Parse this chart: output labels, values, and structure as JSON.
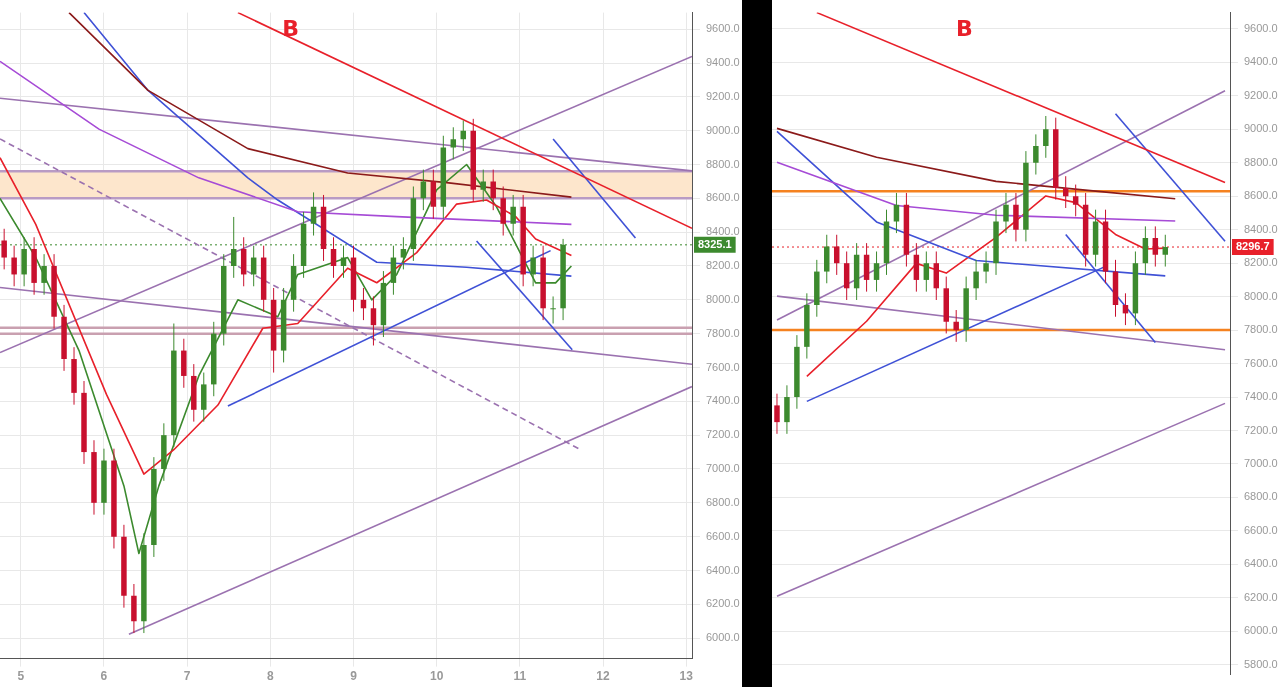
{
  "chart_data": [
    {
      "type": "candlestick",
      "annotations": [
        "B"
      ],
      "grid": true,
      "legend": false,
      "x": [
        4.8,
        4.92,
        5.04,
        5.16,
        5.28,
        5.4,
        5.52,
        5.64,
        5.76,
        5.88,
        6,
        6.12,
        6.24,
        6.36,
        6.48,
        6.6,
        6.72,
        6.84,
        6.96,
        7.08,
        7.2,
        7.32,
        7.44,
        7.56,
        7.68,
        7.8,
        7.92,
        8.04,
        8.16,
        8.28,
        8.4,
        8.52,
        8.64,
        8.76,
        8.88,
        9,
        9.12,
        9.24,
        9.36,
        9.48,
        9.6,
        9.72,
        9.84,
        9.96,
        10.08,
        10.2,
        10.32,
        10.44,
        10.56,
        10.68,
        10.8,
        10.92,
        11.04,
        11.16,
        11.28,
        11.4,
        11.52
      ],
      "ohlc": [
        [
          8350,
          8420,
          8180,
          8250
        ],
        [
          8250,
          8320,
          8080,
          8150
        ],
        [
          8150,
          8370,
          8080,
          8300
        ],
        [
          8300,
          8370,
          8030,
          8100
        ],
        [
          8100,
          8270,
          8030,
          8200
        ],
        [
          8200,
          8270,
          7830,
          7900
        ],
        [
          7900,
          7970,
          7580,
          7650
        ],
        [
          7650,
          7720,
          7380,
          7450
        ],
        [
          7450,
          7520,
          7030,
          7100
        ],
        [
          7100,
          7170,
          6730,
          6800
        ],
        [
          6800,
          7120,
          6730,
          7050
        ],
        [
          7050,
          7120,
          6530,
          6600
        ],
        [
          6600,
          6670,
          6180,
          6250
        ],
        [
          6250,
          6320,
          6030,
          6100
        ],
        [
          6100,
          6620,
          6030,
          6550
        ],
        [
          6550,
          7070,
          6480,
          7000
        ],
        [
          7000,
          7270,
          6930,
          7200
        ],
        [
          7200,
          7860,
          7130,
          7700
        ],
        [
          7700,
          7770,
          7480,
          7550
        ],
        [
          7550,
          7620,
          7280,
          7350
        ],
        [
          7350,
          7570,
          7280,
          7500
        ],
        [
          7500,
          7870,
          7430,
          7800
        ],
        [
          7800,
          8270,
          7730,
          8200
        ],
        [
          8200,
          8490,
          8130,
          8300
        ],
        [
          8300,
          8370,
          8080,
          8150
        ],
        [
          8150,
          8320,
          8080,
          8250
        ],
        [
          8250,
          8320,
          7930,
          8000
        ],
        [
          8000,
          8070,
          7570,
          7700
        ],
        [
          7700,
          8070,
          7630,
          8000
        ],
        [
          8000,
          8270,
          7930,
          8200
        ],
        [
          8200,
          8520,
          8130,
          8450
        ],
        [
          8450,
          8635,
          8380,
          8550
        ],
        [
          8550,
          8620,
          8230,
          8300
        ],
        [
          8300,
          8370,
          8130,
          8200
        ],
        [
          8200,
          8320,
          8130,
          8250
        ],
        [
          8250,
          8320,
          7930,
          8000
        ],
        [
          8000,
          8070,
          7880,
          7950
        ],
        [
          7950,
          8020,
          7730,
          7850
        ],
        [
          7850,
          8170,
          7780,
          8100
        ],
        [
          8100,
          8320,
          8030,
          8250
        ],
        [
          8250,
          8370,
          8180,
          8300
        ],
        [
          8300,
          8670,
          8230,
          8600
        ],
        [
          8600,
          8770,
          8530,
          8700
        ],
        [
          8700,
          8770,
          8480,
          8550
        ],
        [
          8550,
          8970,
          8480,
          8900
        ],
        [
          8900,
          9020,
          8830,
          8950
        ],
        [
          8950,
          9060,
          8880,
          9000
        ],
        [
          9000,
          9070,
          8580,
          8650
        ],
        [
          8650,
          8770,
          8580,
          8700
        ],
        [
          8700,
          8770,
          8530,
          8600
        ],
        [
          8600,
          8670,
          8380,
          8450
        ],
        [
          8450,
          8620,
          8380,
          8550
        ],
        [
          8550,
          8620,
          8080,
          8150
        ],
        [
          8150,
          8320,
          8080,
          8250
        ],
        [
          8250,
          8320,
          7880,
          7950
        ],
        [
          7950,
          8020,
          7860,
          7950
        ],
        [
          7950,
          8360,
          7880,
          8325.1
        ]
      ],
      "series": [
        {
          "type": "line",
          "color": "#8b1a1a",
          "x": [
            5.58,
            6.53,
            7.73,
            8.93,
            10.12,
            11.62
          ],
          "values": [
            9698,
            9238,
            8894,
            8750,
            8693,
            8607
          ]
        },
        {
          "type": "line",
          "color": "#a64bd6",
          "x": [
            4.75,
            5.94,
            7.14,
            8.33,
            9.52,
            11.62
          ],
          "values": [
            9410,
            9009,
            8721,
            8521,
            8492,
            8446
          ]
        },
        {
          "type": "line",
          "color": "#3f51d6",
          "x": [
            5.76,
            6.53,
            7.73,
            8.09,
            9.28,
            10.36,
            11.62
          ],
          "values": [
            9698,
            9238,
            8721,
            8590,
            8222,
            8193,
            8140
          ]
        },
        {
          "type": "line",
          "color": "#e8202a",
          "x": [
            4.75,
            5.18,
            6.03,
            6.48,
            6.84,
            7.37,
            7.91,
            8.33,
            8.93,
            9.28,
            9.76,
            10.24,
            10.6,
            10.95,
            11.19,
            11.62
          ],
          "values": [
            8840,
            8446,
            7441,
            6970,
            7114,
            7378,
            7832,
            7860,
            8187,
            8101,
            8279,
            8566,
            8590,
            8492,
            8360,
            8262
          ]
        },
        {
          "type": "line",
          "color": "#3c8a2e",
          "x": [
            4.75,
            5.18,
            5.7,
            6.24,
            6.42,
            6.66,
            7.14,
            7.61,
            8.09,
            8.33,
            8.93,
            9.22,
            9.52,
            10,
            10.36,
            10.72,
            11.19,
            11.43,
            11.62
          ],
          "values": [
            8600,
            8250,
            7700,
            6900,
            6500,
            6900,
            7550,
            8000,
            7900,
            8150,
            8250,
            8000,
            8150,
            8650,
            8800,
            8550,
            8100,
            8100,
            8200
          ]
        },
        {
          "type": "line",
          "color": "#e8202a",
          "x": [
            7.61,
            13.07
          ],
          "values": [
            9698,
            8423
          ]
        },
        {
          "type": "line",
          "color": "#3f51d6",
          "x": [
            11.4,
            12.39
          ],
          "values": [
            8951,
            8365
          ]
        },
        {
          "type": "line",
          "color": "#3f51d6",
          "x": [
            10.48,
            11.63
          ],
          "values": [
            8348,
            7705
          ]
        },
        {
          "type": "line",
          "color": "#3f51d6",
          "x": [
            7.49,
            11.37
          ],
          "values": [
            7372,
            8291
          ]
        },
        {
          "type": "line",
          "color": "#9b72b0",
          "x": [
            4.75,
            13.07
          ],
          "values": [
            9192,
            8762
          ]
        },
        {
          "type": "line",
          "color": "#9b72b0",
          "x": [
            4.75,
            13.07
          ],
          "values": [
            7688,
            9439
          ]
        },
        {
          "type": "line",
          "color": "#9b72b0",
          "x": [
            4.75,
            13.07
          ],
          "values": [
            8073,
            7619
          ]
        },
        {
          "type": "line",
          "color": "#9b72b0",
          "x": [
            6.3,
            13.07
          ],
          "values": [
            6023,
            7487
          ]
        },
        {
          "type": "line",
          "color": "#9b72b0",
          "line_style": "dashed",
          "x": [
            4.75,
            11.73
          ],
          "values": [
            8951,
            7114
          ]
        }
      ],
      "bands": [
        {
          "axis": "y",
          "from": 8600,
          "to": 8760,
          "color": "#fde6cc"
        }
      ],
      "ref_lines": [
        {
          "axis": "y",
          "value": 8600,
          "color": "#b99bc4"
        },
        {
          "axis": "y",
          "value": 8760,
          "color": "#b99bc4"
        },
        {
          "axis": "y",
          "value": 7800,
          "color": "#c9a0b0"
        },
        {
          "axis": "y",
          "value": 7835,
          "color": "#c9a0b0"
        },
        {
          "axis": "y",
          "value": 8325.1,
          "label": "8325.1",
          "color": "#3c8a2e",
          "line_style": "dotted"
        }
      ],
      "xlim": [
        4.75,
        13.07
      ],
      "xticks": [
        5,
        6,
        7,
        8,
        9,
        10,
        11,
        12,
        13
      ],
      "ylim": [
        5879,
        9698
      ],
      "yticks": [
        {
          "value": 6000,
          "label": "6000.0"
        },
        {
          "value": 6200,
          "label": "6200.0"
        },
        {
          "value": 6400,
          "label": "6400.0"
        },
        {
          "value": 6600,
          "label": "6600.0"
        },
        {
          "value": 6800,
          "label": "6800.0"
        },
        {
          "value": 7000,
          "label": "7000.0"
        },
        {
          "value": 7200,
          "label": "7200.0"
        },
        {
          "value": 7400,
          "label": "7400.0"
        },
        {
          "value": 7600,
          "label": "7600.0"
        },
        {
          "value": 7800,
          "label": "7800.0"
        },
        {
          "value": 8000,
          "label": "8000.0"
        },
        {
          "value": 8200,
          "label": "8200.0"
        },
        {
          "value": 8400,
          "label": "8400.0"
        },
        {
          "value": 8600,
          "label": "8600.0"
        },
        {
          "value": 8800,
          "label": "8800.0"
        },
        {
          "value": 9000,
          "label": "9000.0"
        },
        {
          "value": 9200,
          "label": "9200.0"
        },
        {
          "value": 9400,
          "label": "9400.0"
        },
        {
          "value": 9600,
          "label": "9600.0"
        }
      ]
    },
    {
      "type": "candlestick",
      "annotations": [
        "B"
      ],
      "grid": "y",
      "legend": false,
      "tick_labels": "y",
      "categories": [
        null,
        null,
        null,
        null,
        null,
        null,
        null,
        null,
        null,
        null,
        null,
        null,
        null,
        null,
        null,
        null,
        null,
        null,
        null,
        null,
        null,
        null,
        null,
        null,
        null,
        null,
        null,
        null,
        null,
        null,
        null,
        null,
        null,
        null,
        null,
        null,
        null,
        null,
        null,
        null,
        null,
        null,
        null,
        null,
        null,
        null
      ],
      "ohlc": [
        [
          7350,
          7420,
          7180,
          7250
        ],
        [
          7250,
          7470,
          7180,
          7400
        ],
        [
          7400,
          7770,
          7330,
          7700
        ],
        [
          7700,
          8020,
          7630,
          7950
        ],
        [
          7950,
          8220,
          7880,
          8150
        ],
        [
          8150,
          8370,
          8080,
          8300
        ],
        [
          8300,
          8370,
          8130,
          8200
        ],
        [
          8200,
          8270,
          7980,
          8050
        ],
        [
          8050,
          8320,
          7980,
          8250
        ],
        [
          8250,
          8320,
          8030,
          8100
        ],
        [
          8100,
          8270,
          8030,
          8200
        ],
        [
          8200,
          8520,
          8130,
          8450
        ],
        [
          8450,
          8620,
          8380,
          8550
        ],
        [
          8550,
          8620,
          8180,
          8250
        ],
        [
          8250,
          8320,
          8030,
          8100
        ],
        [
          8100,
          8270,
          8030,
          8200
        ],
        [
          8200,
          8270,
          7980,
          8050
        ],
        [
          8050,
          8120,
          7780,
          7850
        ],
        [
          7850,
          7920,
          7730,
          7800
        ],
        [
          7800,
          8120,
          7730,
          8050
        ],
        [
          8050,
          8220,
          7980,
          8150
        ],
        [
          8150,
          8270,
          8080,
          8200
        ],
        [
          8200,
          8520,
          8130,
          8450
        ],
        [
          8450,
          8620,
          8380,
          8550
        ],
        [
          8550,
          8620,
          8330,
          8400
        ],
        [
          8400,
          8870,
          8330,
          8800
        ],
        [
          8800,
          8970,
          8730,
          8900
        ],
        [
          8900,
          9080,
          8830,
          9000
        ],
        [
          9000,
          9070,
          8580,
          8650
        ],
        [
          8650,
          8720,
          8530,
          8600
        ],
        [
          8600,
          8670,
          8480,
          8550
        ],
        [
          8550,
          8620,
          8180,
          8250
        ],
        [
          8250,
          8520,
          8180,
          8450
        ],
        [
          8450,
          8520,
          8080,
          8150
        ],
        [
          8150,
          8220,
          7880,
          7950
        ],
        [
          7950,
          8020,
          7830,
          7900
        ],
        [
          7900,
          8270,
          7830,
          8200
        ],
        [
          8200,
          8420,
          8130,
          8350
        ],
        [
          8350,
          8420,
          8180,
          8250
        ],
        [
          8250,
          8370,
          8180,
          8296.7
        ],
        null,
        null,
        null,
        null,
        null,
        null
      ],
      "series": [
        {
          "type": "line",
          "color": "#8b1a1a",
          "values": [
            9006,
            null,
            null,
            null,
            null,
            null,
            null,
            null,
            null,
            null,
            8833,
            null,
            null,
            null,
            null,
            null,
            null,
            null,
            null,
            null,
            null,
            null,
            8689,
            null,
            null,
            null,
            null,
            null,
            null,
            null,
            null,
            null,
            8631,
            null,
            null,
            null,
            null,
            null,
            null,
            null,
            8585,
            null,
            null,
            null,
            null,
            null
          ]
        },
        {
          "type": "line",
          "color": "#a64bd6",
          "values": [
            8804,
            null,
            null,
            null,
            null,
            null,
            null,
            null,
            null,
            null,
            null,
            null,
            8545,
            null,
            null,
            null,
            null,
            null,
            null,
            null,
            null,
            null,
            8487,
            null,
            null,
            null,
            null,
            null,
            null,
            null,
            null,
            null,
            null,
            null,
            null,
            null,
            null,
            null,
            null,
            null,
            8452,
            null,
            null,
            null,
            null,
            null
          ]
        },
        {
          "type": "line",
          "color": "#3f51d6",
          "values": [
            8988,
            null,
            null,
            null,
            null,
            null,
            null,
            null,
            null,
            null,
            8447,
            null,
            null,
            null,
            null,
            null,
            null,
            null,
            null,
            null,
            8216,
            null,
            null,
            null,
            null,
            null,
            null,
            null,
            null,
            null,
            null,
            null,
            null,
            null,
            null,
            null,
            null,
            null,
            null,
            8124,
            null,
            null,
            null,
            null,
            null,
            null
          ]
        },
        {
          "type": "line",
          "color": "#e8202a",
          "values": [
            null,
            null,
            null,
            7524,
            null,
            null,
            null,
            null,
            null,
            7853,
            null,
            null,
            null,
            null,
            8199,
            null,
            null,
            8141,
            null,
            null,
            null,
            null,
            8354,
            null,
            null,
            null,
            null,
            8602,
            null,
            null,
            8562,
            null,
            null,
            null,
            8372,
            null,
            null,
            8285,
            null,
            8290,
            null,
            null,
            null,
            null,
            null,
            null
          ]
        },
        {
          "type": "line",
          "color": "#e8202a",
          "values": [
            null,
            null,
            null,
            null,
            9698,
            null,
            null,
            null,
            null,
            null,
            null,
            null,
            null,
            null,
            null,
            null,
            null,
            null,
            null,
            null,
            null,
            null,
            null,
            null,
            null,
            null,
            null,
            null,
            null,
            null,
            null,
            null,
            null,
            null,
            null,
            null,
            null,
            null,
            null,
            null,
            null,
            null,
            null,
            null,
            null,
            8683
          ]
        },
        {
          "type": "line",
          "color": "#3f51d6",
          "values": [
            null,
            null,
            null,
            null,
            null,
            null,
            null,
            null,
            null,
            null,
            null,
            null,
            null,
            null,
            null,
            null,
            null,
            null,
            null,
            null,
            null,
            null,
            null,
            null,
            null,
            null,
            null,
            null,
            null,
            null,
            null,
            null,
            null,
            null,
            9093,
            null,
            null,
            null,
            null,
            null,
            null,
            null,
            null,
            null,
            null,
            8331
          ]
        },
        {
          "type": "line",
          "color": "#3f51d6",
          "values": [
            null,
            null,
            null,
            null,
            null,
            null,
            null,
            null,
            null,
            null,
            null,
            null,
            null,
            null,
            null,
            null,
            null,
            null,
            null,
            null,
            null,
            null,
            null,
            null,
            null,
            null,
            null,
            null,
            null,
            8372,
            null,
            null,
            null,
            null,
            null,
            null,
            null,
            null,
            7726,
            null,
            null,
            null,
            null,
            null,
            null,
            null
          ]
        },
        {
          "type": "line",
          "color": "#3f51d6",
          "values": [
            null,
            null,
            null,
            7374,
            null,
            null,
            null,
            null,
            null,
            null,
            null,
            null,
            null,
            null,
            null,
            null,
            null,
            null,
            null,
            null,
            null,
            null,
            null,
            null,
            null,
            null,
            null,
            null,
            null,
            null,
            null,
            null,
            null,
            8181,
            null,
            null,
            null,
            null,
            null,
            null,
            null,
            null,
            null,
            null,
            null,
            null
          ]
        },
        {
          "type": "line",
          "color": "#9b72b0",
          "values": [
            7860,
            null,
            null,
            null,
            null,
            null,
            null,
            null,
            null,
            null,
            null,
            null,
            null,
            null,
            null,
            null,
            null,
            null,
            null,
            null,
            null,
            null,
            null,
            null,
            null,
            null,
            null,
            null,
            null,
            null,
            null,
            null,
            null,
            null,
            null,
            null,
            null,
            null,
            null,
            null,
            null,
            null,
            null,
            null,
            null,
            9231
          ]
        },
        {
          "type": "line",
          "color": "#9b72b0",
          "values": [
            8003,
            null,
            null,
            null,
            null,
            null,
            null,
            null,
            null,
            null,
            null,
            null,
            null,
            null,
            null,
            null,
            null,
            null,
            null,
            null,
            null,
            null,
            null,
            null,
            null,
            null,
            null,
            null,
            null,
            null,
            null,
            null,
            null,
            null,
            null,
            null,
            null,
            null,
            null,
            null,
            null,
            null,
            null,
            null,
            null,
            7683
          ]
        },
        {
          "type": "line",
          "color": "#9b72b0",
          "values": [
            6209,
            null,
            null,
            null,
            null,
            null,
            null,
            null,
            null,
            null,
            null,
            null,
            null,
            null,
            null,
            null,
            null,
            null,
            null,
            null,
            null,
            null,
            null,
            null,
            null,
            null,
            null,
            null,
            null,
            null,
            null,
            null,
            null,
            null,
            null,
            null,
            null,
            null,
            null,
            null,
            null,
            null,
            null,
            null,
            null,
            7362
          ]
        }
      ],
      "ref_lines": [
        {
          "axis": "y",
          "value": 8630,
          "color": "#f58220"
        },
        {
          "axis": "y",
          "value": 7800,
          "color": "#f58220"
        },
        {
          "axis": "y",
          "value": 8296.7,
          "label": "8296.7",
          "color": "#e8202a",
          "line_style": "dotted"
        }
      ],
      "ylim": [
        5742,
        9698
      ],
      "yticks": [
        {
          "value": 5800,
          "label": "5800.0"
        },
        {
          "value": 6000,
          "label": "6000.0"
        },
        {
          "value": 6200,
          "label": "6200.0"
        },
        {
          "value": 6400,
          "label": "6400.0"
        },
        {
          "value": 6600,
          "label": "6600.0"
        },
        {
          "value": 6800,
          "label": "6800.0"
        },
        {
          "value": 7000,
          "label": "7000.0"
        },
        {
          "value": 7200,
          "label": "7200.0"
        },
        {
          "value": 7400,
          "label": "7400.0"
        },
        {
          "value": 7600,
          "label": "7600.0"
        },
        {
          "value": 7800,
          "label": "7800.0"
        },
        {
          "value": 8000,
          "label": "8000.0"
        },
        {
          "value": 8200,
          "label": "8200.0"
        },
        {
          "value": 8400,
          "label": "8400.0"
        },
        {
          "value": 8600,
          "label": "8600.0"
        },
        {
          "value": 8800,
          "label": "8800.0"
        },
        {
          "value": 9000,
          "label": "9000.0"
        },
        {
          "value": 9200,
          "label": "9200.0"
        },
        {
          "value": 9400,
          "label": "9400.0"
        },
        {
          "value": 9600,
          "label": "9600.0"
        }
      ]
    }
  ]
}
